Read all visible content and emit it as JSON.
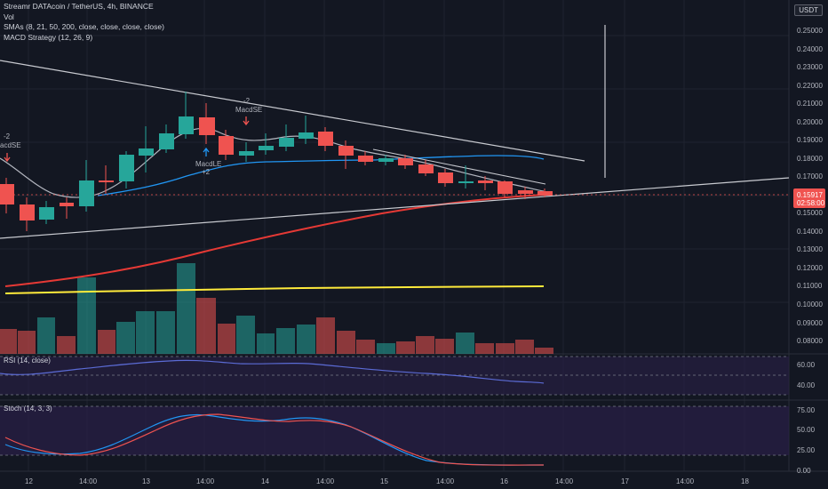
{
  "header": {
    "symbol_line": "Streamr DATAcoin / TetherUS, 4h, BINANCE",
    "vol_label": "Vol",
    "sma_label": "SMAs (8, 21, 50, 200, close, close, close, close)",
    "macd_label": "MACD Strategy (12, 26, 9)"
  },
  "currency_button": "USDT",
  "price_axis": {
    "ticks": [
      "0.25000",
      "0.24000",
      "0.23000",
      "0.22000",
      "0.21000",
      "0.20000",
      "0.19000",
      "0.18000",
      "0.17000",
      "0.16000",
      "0.15000",
      "0.14000",
      "0.13000",
      "0.12000",
      "0.11000",
      "0.10000",
      "0.09000",
      "0.08000"
    ],
    "last_price": "0.15917",
    "countdown": "02:58:00",
    "last_price_color": "#f05350"
  },
  "time_axis": {
    "ticks": [
      "12",
      "14:00",
      "13",
      "14:00",
      "14",
      "14:00",
      "15",
      "14:00",
      "16",
      "14:00",
      "17",
      "14:00",
      "18"
    ]
  },
  "annotations": {
    "left_sell_count": "-2",
    "left_sell_label": "acdSE",
    "mid_sell_count": "-2",
    "mid_sell_label": "MacdSE",
    "buy_label": "MacdLE",
    "buy_count": "+2"
  },
  "rsi": {
    "label": "RSI (14, close)",
    "ticks": [
      "60.00",
      "40.00"
    ]
  },
  "stoch": {
    "label": "Stoch (14, 3, 3)",
    "ticks": [
      "75.00",
      "50.00",
      "25.00",
      "0.00"
    ]
  },
  "colors": {
    "background": "#131722",
    "up": "#26a69a",
    "down": "#ef5350",
    "sma_fast": "#b2b5be",
    "sma_mid": "#2196f3",
    "sma_red": "#e53935",
    "sma_yellow": "#ffeb3b",
    "panel_purple": "#2a1f47"
  }
}
